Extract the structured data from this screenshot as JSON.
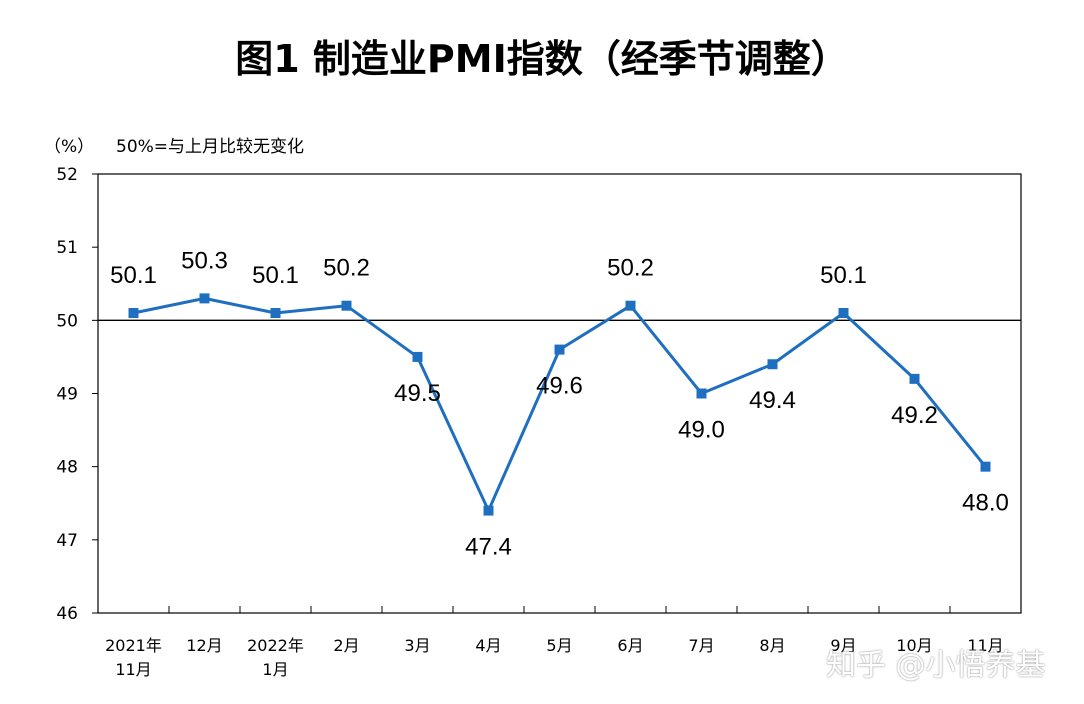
{
  "title": "图1 制造业PMI指数（经季节调整）",
  "unit_label": "（%）",
  "reference_note": "50%=与上月比较无变化",
  "watermark": "知乎 @小悟养基",
  "chart_data": {
    "type": "line",
    "title": "图1 制造业PMI指数（经季节调整）",
    "ylabel": "（%）",
    "xlabel": "",
    "categories": [
      [
        "2021年",
        "11月"
      ],
      [
        "12月"
      ],
      [
        "2022年",
        "1月"
      ],
      [
        "2月"
      ],
      [
        "3月"
      ],
      [
        "4月"
      ],
      [
        "5月"
      ],
      [
        "6月"
      ],
      [
        "7月"
      ],
      [
        "8月"
      ],
      [
        "9月"
      ],
      [
        "10月"
      ],
      [
        "11月"
      ]
    ],
    "series": [
      {
        "values": [
          50.1,
          50.3,
          50.1,
          50.2,
          49.5,
          47.4,
          49.6,
          50.2,
          49.0,
          49.4,
          50.1,
          49.2,
          48.0
        ],
        "labels": [
          "50.1",
          "50.3",
          "50.1",
          "50.2",
          "49.5",
          "47.4",
          "49.6",
          "50.2",
          "49.0",
          "49.4",
          "50.1",
          "49.2",
          "48.0"
        ],
        "color": "#1f6fc0"
      }
    ],
    "ylim": [
      46,
      52
    ],
    "yticks": [
      46,
      47,
      48,
      49,
      50,
      51,
      52
    ],
    "reference_line": 50,
    "grid": false,
    "legend": "none"
  }
}
